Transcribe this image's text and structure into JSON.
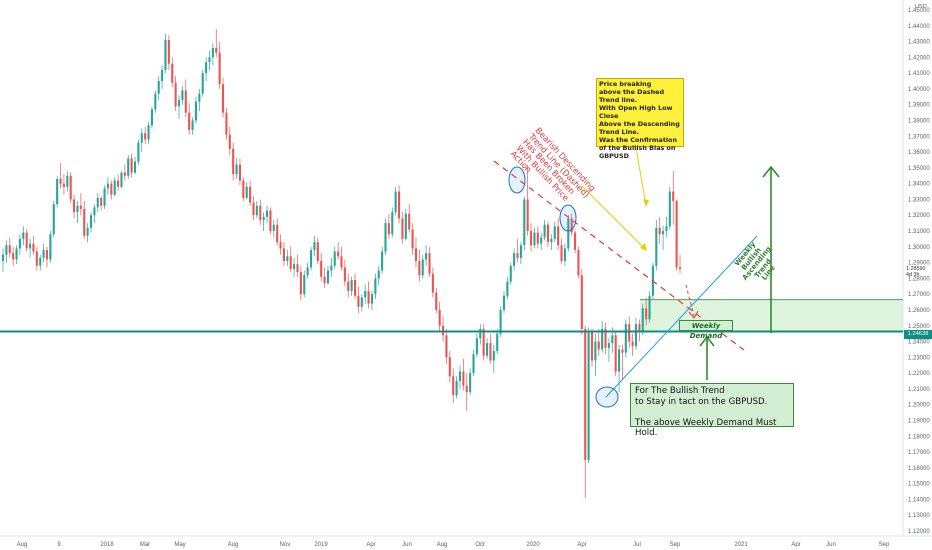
{
  "chart_data": {
    "type": "candlestick",
    "currency": "USD",
    "y_ticks": [
      "1.45000",
      "1.44000",
      "1.43000",
      "1.42000",
      "1.41000",
      "1.40000",
      "1.39000",
      "1.38000",
      "1.37000",
      "1.36000",
      "1.35000",
      "1.34000",
      "1.33000",
      "1.32000",
      "1.31000",
      "1.30000",
      "1.29000",
      "1.28000",
      "1.27000",
      "1.26000",
      "1.25000",
      "1.24000",
      "1.23000",
      "1.22000",
      "1.21000",
      "1.20000",
      "1.19000",
      "1.18000",
      "1.17000",
      "1.16000",
      "1.15000",
      "1.14000",
      "1.13000",
      "1.12000"
    ],
    "ylim": [
      1.12,
      1.45
    ],
    "x_ticks": [
      "Aug",
      "9",
      "2018",
      "Mar",
      "May",
      "Aug",
      "Nov",
      "2019",
      "Apr",
      "Jun",
      "Aug",
      "Oct",
      "2020",
      "Apr",
      "Jul",
      "Sep",
      "2021",
      "Apr",
      "Jun",
      "Sep"
    ],
    "last_price": "1.24638",
    "current_price": "1.28590",
    "current_timer": "4d 3h",
    "support_level": 1.24638,
    "demand_zone": [
      1.2465,
      1.2665
    ],
    "candles": [
      [
        1.291,
        1.299,
        1.284,
        1.295
      ],
      [
        1.295,
        1.304,
        1.29,
        1.301
      ],
      [
        1.301,
        1.306,
        1.293,
        1.296
      ],
      [
        1.296,
        1.3,
        1.288,
        1.292
      ],
      [
        1.292,
        1.301,
        1.289,
        1.299
      ],
      [
        1.299,
        1.308,
        1.295,
        1.305
      ],
      [
        1.305,
        1.313,
        1.301,
        1.309
      ],
      [
        1.309,
        1.311,
        1.297,
        1.299
      ],
      [
        1.299,
        1.305,
        1.293,
        1.302
      ],
      [
        1.302,
        1.307,
        1.295,
        1.297
      ],
      [
        1.297,
        1.3,
        1.285,
        1.288
      ],
      [
        1.288,
        1.295,
        1.285,
        1.293
      ],
      [
        1.293,
        1.302,
        1.29,
        1.298
      ],
      [
        1.298,
        1.3,
        1.287,
        1.292
      ],
      [
        1.292,
        1.31,
        1.29,
        1.308
      ],
      [
        1.308,
        1.329,
        1.306,
        1.327
      ],
      [
        1.327,
        1.345,
        1.325,
        1.343
      ],
      [
        1.343,
        1.353,
        1.337,
        1.34
      ],
      [
        1.34,
        1.346,
        1.333,
        1.338
      ],
      [
        1.338,
        1.348,
        1.335,
        1.345
      ],
      [
        1.345,
        1.347,
        1.328,
        1.33
      ],
      [
        1.33,
        1.333,
        1.318,
        1.322
      ],
      [
        1.322,
        1.329,
        1.315,
        1.326
      ],
      [
        1.326,
        1.334,
        1.32,
        1.324
      ],
      [
        1.324,
        1.329,
        1.305,
        1.307
      ],
      [
        1.307,
        1.315,
        1.303,
        1.312
      ],
      [
        1.312,
        1.322,
        1.309,
        1.32
      ],
      [
        1.32,
        1.327,
        1.315,
        1.325
      ],
      [
        1.325,
        1.334,
        1.322,
        1.331
      ],
      [
        1.331,
        1.332,
        1.323,
        1.326
      ],
      [
        1.326,
        1.339,
        1.324,
        1.337
      ],
      [
        1.337,
        1.344,
        1.333,
        1.34
      ],
      [
        1.34,
        1.342,
        1.33,
        1.333
      ],
      [
        1.333,
        1.344,
        1.332,
        1.342
      ],
      [
        1.342,
        1.346,
        1.336,
        1.338
      ],
      [
        1.338,
        1.348,
        1.337,
        1.347
      ],
      [
        1.347,
        1.352,
        1.342,
        1.345
      ],
      [
        1.345,
        1.358,
        1.343,
        1.356
      ],
      [
        1.356,
        1.359,
        1.344,
        1.347
      ],
      [
        1.347,
        1.357,
        1.346,
        1.354
      ],
      [
        1.354,
        1.368,
        1.352,
        1.366
      ],
      [
        1.366,
        1.375,
        1.36,
        1.372
      ],
      [
        1.372,
        1.376,
        1.365,
        1.368
      ],
      [
        1.368,
        1.379,
        1.365,
        1.377
      ],
      [
        1.377,
        1.389,
        1.375,
        1.387
      ],
      [
        1.387,
        1.399,
        1.385,
        1.397
      ],
      [
        1.397,
        1.408,
        1.393,
        1.405
      ],
      [
        1.405,
        1.415,
        1.4,
        1.412
      ],
      [
        1.412,
        1.435,
        1.41,
        1.431
      ],
      [
        1.431,
        1.434,
        1.412,
        1.416
      ],
      [
        1.416,
        1.42,
        1.401,
        1.404
      ],
      [
        1.404,
        1.408,
        1.386,
        1.389
      ],
      [
        1.389,
        1.396,
        1.381,
        1.393
      ],
      [
        1.393,
        1.402,
        1.39,
        1.399
      ],
      [
        1.399,
        1.406,
        1.382,
        1.385
      ],
      [
        1.385,
        1.391,
        1.371,
        1.374
      ],
      [
        1.374,
        1.382,
        1.371,
        1.38
      ],
      [
        1.38,
        1.395,
        1.378,
        1.392
      ],
      [
        1.392,
        1.4,
        1.386,
        1.397
      ],
      [
        1.397,
        1.412,
        1.395,
        1.41
      ],
      [
        1.41,
        1.42,
        1.405,
        1.417
      ],
      [
        1.417,
        1.424,
        1.412,
        1.42
      ],
      [
        1.42,
        1.429,
        1.415,
        1.426
      ],
      [
        1.426,
        1.438,
        1.42,
        1.423
      ],
      [
        1.423,
        1.43,
        1.4,
        1.403
      ],
      [
        1.403,
        1.407,
        1.382,
        1.385
      ],
      [
        1.385,
        1.388,
        1.368,
        1.371
      ],
      [
        1.371,
        1.376,
        1.358,
        1.362
      ],
      [
        1.362,
        1.366,
        1.342,
        1.346
      ],
      [
        1.346,
        1.356,
        1.343,
        1.352
      ],
      [
        1.352,
        1.356,
        1.339,
        1.342
      ],
      [
        1.342,
        1.344,
        1.329,
        1.331
      ],
      [
        1.331,
        1.341,
        1.33,
        1.338
      ],
      [
        1.338,
        1.342,
        1.326,
        1.328
      ],
      [
        1.328,
        1.332,
        1.317,
        1.32
      ],
      [
        1.32,
        1.329,
        1.318,
        1.326
      ],
      [
        1.326,
        1.33,
        1.314,
        1.317
      ],
      [
        1.317,
        1.322,
        1.31,
        1.319
      ],
      [
        1.319,
        1.326,
        1.315,
        1.323
      ],
      [
        1.323,
        1.325,
        1.308,
        1.31
      ],
      [
        1.31,
        1.317,
        1.306,
        1.314
      ],
      [
        1.314,
        1.318,
        1.301,
        1.303
      ],
      [
        1.303,
        1.308,
        1.295,
        1.299
      ],
      [
        1.299,
        1.303,
        1.288,
        1.291
      ],
      [
        1.291,
        1.298,
        1.288,
        1.294
      ],
      [
        1.294,
        1.3,
        1.284,
        1.286
      ],
      [
        1.286,
        1.293,
        1.281,
        1.289
      ],
      [
        1.289,
        1.295,
        1.281,
        1.284
      ],
      [
        1.284,
        1.288,
        1.266,
        1.27
      ],
      [
        1.27,
        1.285,
        1.268,
        1.282
      ],
      [
        1.282,
        1.29,
        1.28,
        1.287
      ],
      [
        1.287,
        1.3,
        1.285,
        1.298
      ],
      [
        1.298,
        1.307,
        1.294,
        1.303
      ],
      [
        1.303,
        1.306,
        1.289,
        1.291
      ],
      [
        1.291,
        1.296,
        1.278,
        1.281
      ],
      [
        1.281,
        1.287,
        1.274,
        1.277
      ],
      [
        1.277,
        1.288,
        1.276,
        1.285
      ],
      [
        1.285,
        1.293,
        1.281,
        1.288
      ],
      [
        1.288,
        1.3,
        1.286,
        1.297
      ],
      [
        1.297,
        1.303,
        1.292,
        1.294
      ],
      [
        1.294,
        1.3,
        1.285,
        1.287
      ],
      [
        1.287,
        1.292,
        1.275,
        1.278
      ],
      [
        1.278,
        1.283,
        1.268,
        1.272
      ],
      [
        1.272,
        1.281,
        1.269,
        1.279
      ],
      [
        1.279,
        1.283,
        1.267,
        1.269
      ],
      [
        1.269,
        1.275,
        1.258,
        1.262
      ],
      [
        1.262,
        1.27,
        1.259,
        1.268
      ],
      [
        1.268,
        1.276,
        1.264,
        1.272
      ],
      [
        1.272,
        1.278,
        1.261,
        1.264
      ],
      [
        1.264,
        1.272,
        1.26,
        1.27
      ],
      [
        1.27,
        1.283,
        1.267,
        1.28
      ],
      [
        1.28,
        1.288,
        1.276,
        1.285
      ],
      [
        1.285,
        1.3,
        1.283,
        1.297
      ],
      [
        1.297,
        1.318,
        1.295,
        1.315
      ],
      [
        1.315,
        1.321,
        1.305,
        1.308
      ],
      [
        1.308,
        1.325,
        1.306,
        1.322
      ],
      [
        1.322,
        1.338,
        1.32,
        1.335
      ],
      [
        1.335,
        1.339,
        1.315,
        1.318
      ],
      [
        1.318,
        1.322,
        1.302,
        1.305
      ],
      [
        1.305,
        1.324,
        1.304,
        1.321
      ],
      [
        1.321,
        1.327,
        1.309,
        1.311
      ],
      [
        1.311,
        1.315,
        1.295,
        1.299
      ],
      [
        1.299,
        1.306,
        1.287,
        1.291
      ],
      [
        1.291,
        1.298,
        1.278,
        1.282
      ],
      [
        1.282,
        1.295,
        1.28,
        1.292
      ],
      [
        1.292,
        1.301,
        1.288,
        1.296
      ],
      [
        1.296,
        1.3,
        1.281,
        1.283
      ],
      [
        1.283,
        1.287,
        1.268,
        1.271
      ],
      [
        1.271,
        1.274,
        1.258,
        1.26
      ],
      [
        1.26,
        1.265,
        1.247,
        1.25
      ],
      [
        1.25,
        1.256,
        1.24,
        1.244
      ],
      [
        1.244,
        1.248,
        1.226,
        1.23
      ],
      [
        1.23,
        1.234,
        1.214,
        1.218
      ],
      [
        1.218,
        1.223,
        1.201,
        1.206
      ],
      [
        1.206,
        1.218,
        1.204,
        1.215
      ],
      [
        1.215,
        1.225,
        1.21,
        1.221
      ],
      [
        1.221,
        1.229,
        1.209,
        1.212
      ],
      [
        1.212,
        1.22,
        1.196,
        1.208
      ],
      [
        1.208,
        1.223,
        1.206,
        1.22
      ],
      [
        1.22,
        1.235,
        1.218,
        1.232
      ],
      [
        1.232,
        1.245,
        1.23,
        1.242
      ],
      [
        1.242,
        1.251,
        1.238,
        1.248
      ],
      [
        1.248,
        1.251,
        1.228,
        1.231
      ],
      [
        1.231,
        1.242,
        1.229,
        1.239
      ],
      [
        1.239,
        1.245,
        1.226,
        1.228
      ],
      [
        1.228,
        1.238,
        1.22,
        1.234
      ],
      [
        1.234,
        1.248,
        1.232,
        1.245
      ],
      [
        1.245,
        1.262,
        1.243,
        1.26
      ],
      [
        1.26,
        1.272,
        1.258,
        1.269
      ],
      [
        1.269,
        1.281,
        1.267,
        1.278
      ],
      [
        1.278,
        1.29,
        1.276,
        1.288
      ],
      [
        1.288,
        1.299,
        1.285,
        1.296
      ],
      [
        1.296,
        1.305,
        1.29,
        1.293
      ],
      [
        1.293,
        1.303,
        1.289,
        1.301
      ],
      [
        1.301,
        1.332,
        1.298,
        1.33
      ],
      [
        1.33,
        1.352,
        1.307,
        1.31
      ],
      [
        1.31,
        1.315,
        1.297,
        1.301
      ],
      [
        1.301,
        1.312,
        1.299,
        1.309
      ],
      [
        1.309,
        1.313,
        1.299,
        1.302
      ],
      [
        1.302,
        1.309,
        1.298,
        1.306
      ],
      [
        1.306,
        1.317,
        1.304,
        1.314
      ],
      [
        1.314,
        1.316,
        1.3,
        1.303
      ],
      [
        1.303,
        1.308,
        1.298,
        1.305
      ],
      [
        1.305,
        1.316,
        1.303,
        1.313
      ],
      [
        1.313,
        1.318,
        1.298,
        1.301
      ],
      [
        1.301,
        1.305,
        1.289,
        1.291
      ],
      [
        1.291,
        1.302,
        1.288,
        1.299
      ],
      [
        1.299,
        1.32,
        1.297,
        1.318
      ],
      [
        1.318,
        1.321,
        1.307,
        1.309
      ],
      [
        1.309,
        1.311,
        1.296,
        1.298
      ],
      [
        1.298,
        1.3,
        1.28,
        1.282
      ],
      [
        1.282,
        1.286,
        1.244,
        1.248
      ],
      [
        1.248,
        1.25,
        1.141,
        1.165
      ],
      [
        1.165,
        1.249,
        1.163,
        1.246
      ],
      [
        1.246,
        1.248,
        1.224,
        1.228
      ],
      [
        1.228,
        1.245,
        1.218,
        1.24
      ],
      [
        1.24,
        1.248,
        1.231,
        1.235
      ],
      [
        1.235,
        1.253,
        1.233,
        1.248
      ],
      [
        1.248,
        1.252,
        1.232,
        1.236
      ],
      [
        1.236,
        1.242,
        1.227,
        1.239
      ],
      [
        1.239,
        1.249,
        1.233,
        1.244
      ],
      [
        1.244,
        1.247,
        1.218,
        1.221
      ],
      [
        1.221,
        1.238,
        1.208,
        1.235
      ],
      [
        1.235,
        1.238,
        1.216,
        1.233
      ],
      [
        1.233,
        1.254,
        1.23,
        1.251
      ],
      [
        1.251,
        1.256,
        1.236,
        1.24
      ],
      [
        1.24,
        1.245,
        1.231,
        1.237
      ],
      [
        1.237,
        1.255,
        1.235,
        1.251
      ],
      [
        1.251,
        1.254,
        1.24,
        1.246
      ],
      [
        1.246,
        1.264,
        1.244,
        1.261
      ],
      [
        1.261,
        1.268,
        1.25,
        1.254
      ],
      [
        1.254,
        1.272,
        1.252,
        1.269
      ],
      [
        1.269,
        1.29,
        1.267,
        1.288
      ],
      [
        1.288,
        1.317,
        1.285,
        1.312
      ],
      [
        1.312,
        1.319,
        1.302,
        1.308
      ],
      [
        1.308,
        1.313,
        1.298,
        1.31
      ],
      [
        1.31,
        1.319,
        1.306,
        1.313
      ],
      [
        1.313,
        1.338,
        1.311,
        1.335
      ],
      [
        1.335,
        1.348,
        1.314,
        1.329
      ],
      [
        1.329,
        1.33,
        1.285,
        1.287
      ],
      [
        1.287,
        1.295,
        1.283,
        1.2859
      ]
    ],
    "bear_line_px": [
      [
        494,
        161
      ],
      [
        744,
        350
      ]
    ],
    "bull_line_px": [
      [
        606,
        397
      ],
      [
        757,
        236
      ]
    ]
  },
  "annotations": {
    "yellow_note": "Price breaking\nabove the Dashed\nTrend line.\nWith Open High Low Close\nAbove the Descending\nTrend Line.\nWas the Confirmation\nof the Bullish Bias on\nGBPUSD",
    "bearish_note": "Bearish Descending\nTrend Line (Dashed)\nHas Been Broken\nWith Bullish Price\nAction",
    "bullish_note": "Weekly\nBullish\nAscending\nTrend\nLine",
    "demand_label": "Weekly Demand",
    "green_note": "For The Bullish Trend\nto Stay in tact on the GBPUSD.\n\nThe above Weekly Demand Must Hold."
  },
  "colors": {
    "bull": "#26a69a",
    "bear": "#ef5350",
    "support": "#0e8f86",
    "zone": "#d8f2d8",
    "trend_bull": "#2196f3",
    "trend_bear": "#e53935",
    "arrow": "#2e8b2e"
  }
}
